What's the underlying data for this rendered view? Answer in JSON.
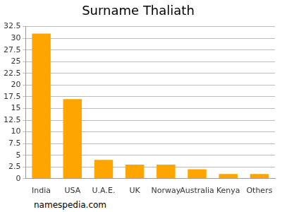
{
  "chart_data": {
    "type": "bar",
    "title": "Surname Thaliath",
    "categories": [
      "India",
      "USA",
      "U.A.E.",
      "UK",
      "Norway",
      "Australia",
      "Kenya",
      "Others"
    ],
    "values": [
      31,
      17,
      4,
      3,
      3,
      2,
      1,
      1
    ],
    "color": "#ffa500",
    "ylim": [
      0,
      32.5
    ],
    "yticks": [
      0,
      2.5,
      5,
      7.5,
      10,
      12.5,
      15,
      17.5,
      20,
      22.5,
      25,
      27.5,
      30,
      32.5
    ],
    "grid": true,
    "annotations": [
      "namespedia.com"
    ]
  }
}
